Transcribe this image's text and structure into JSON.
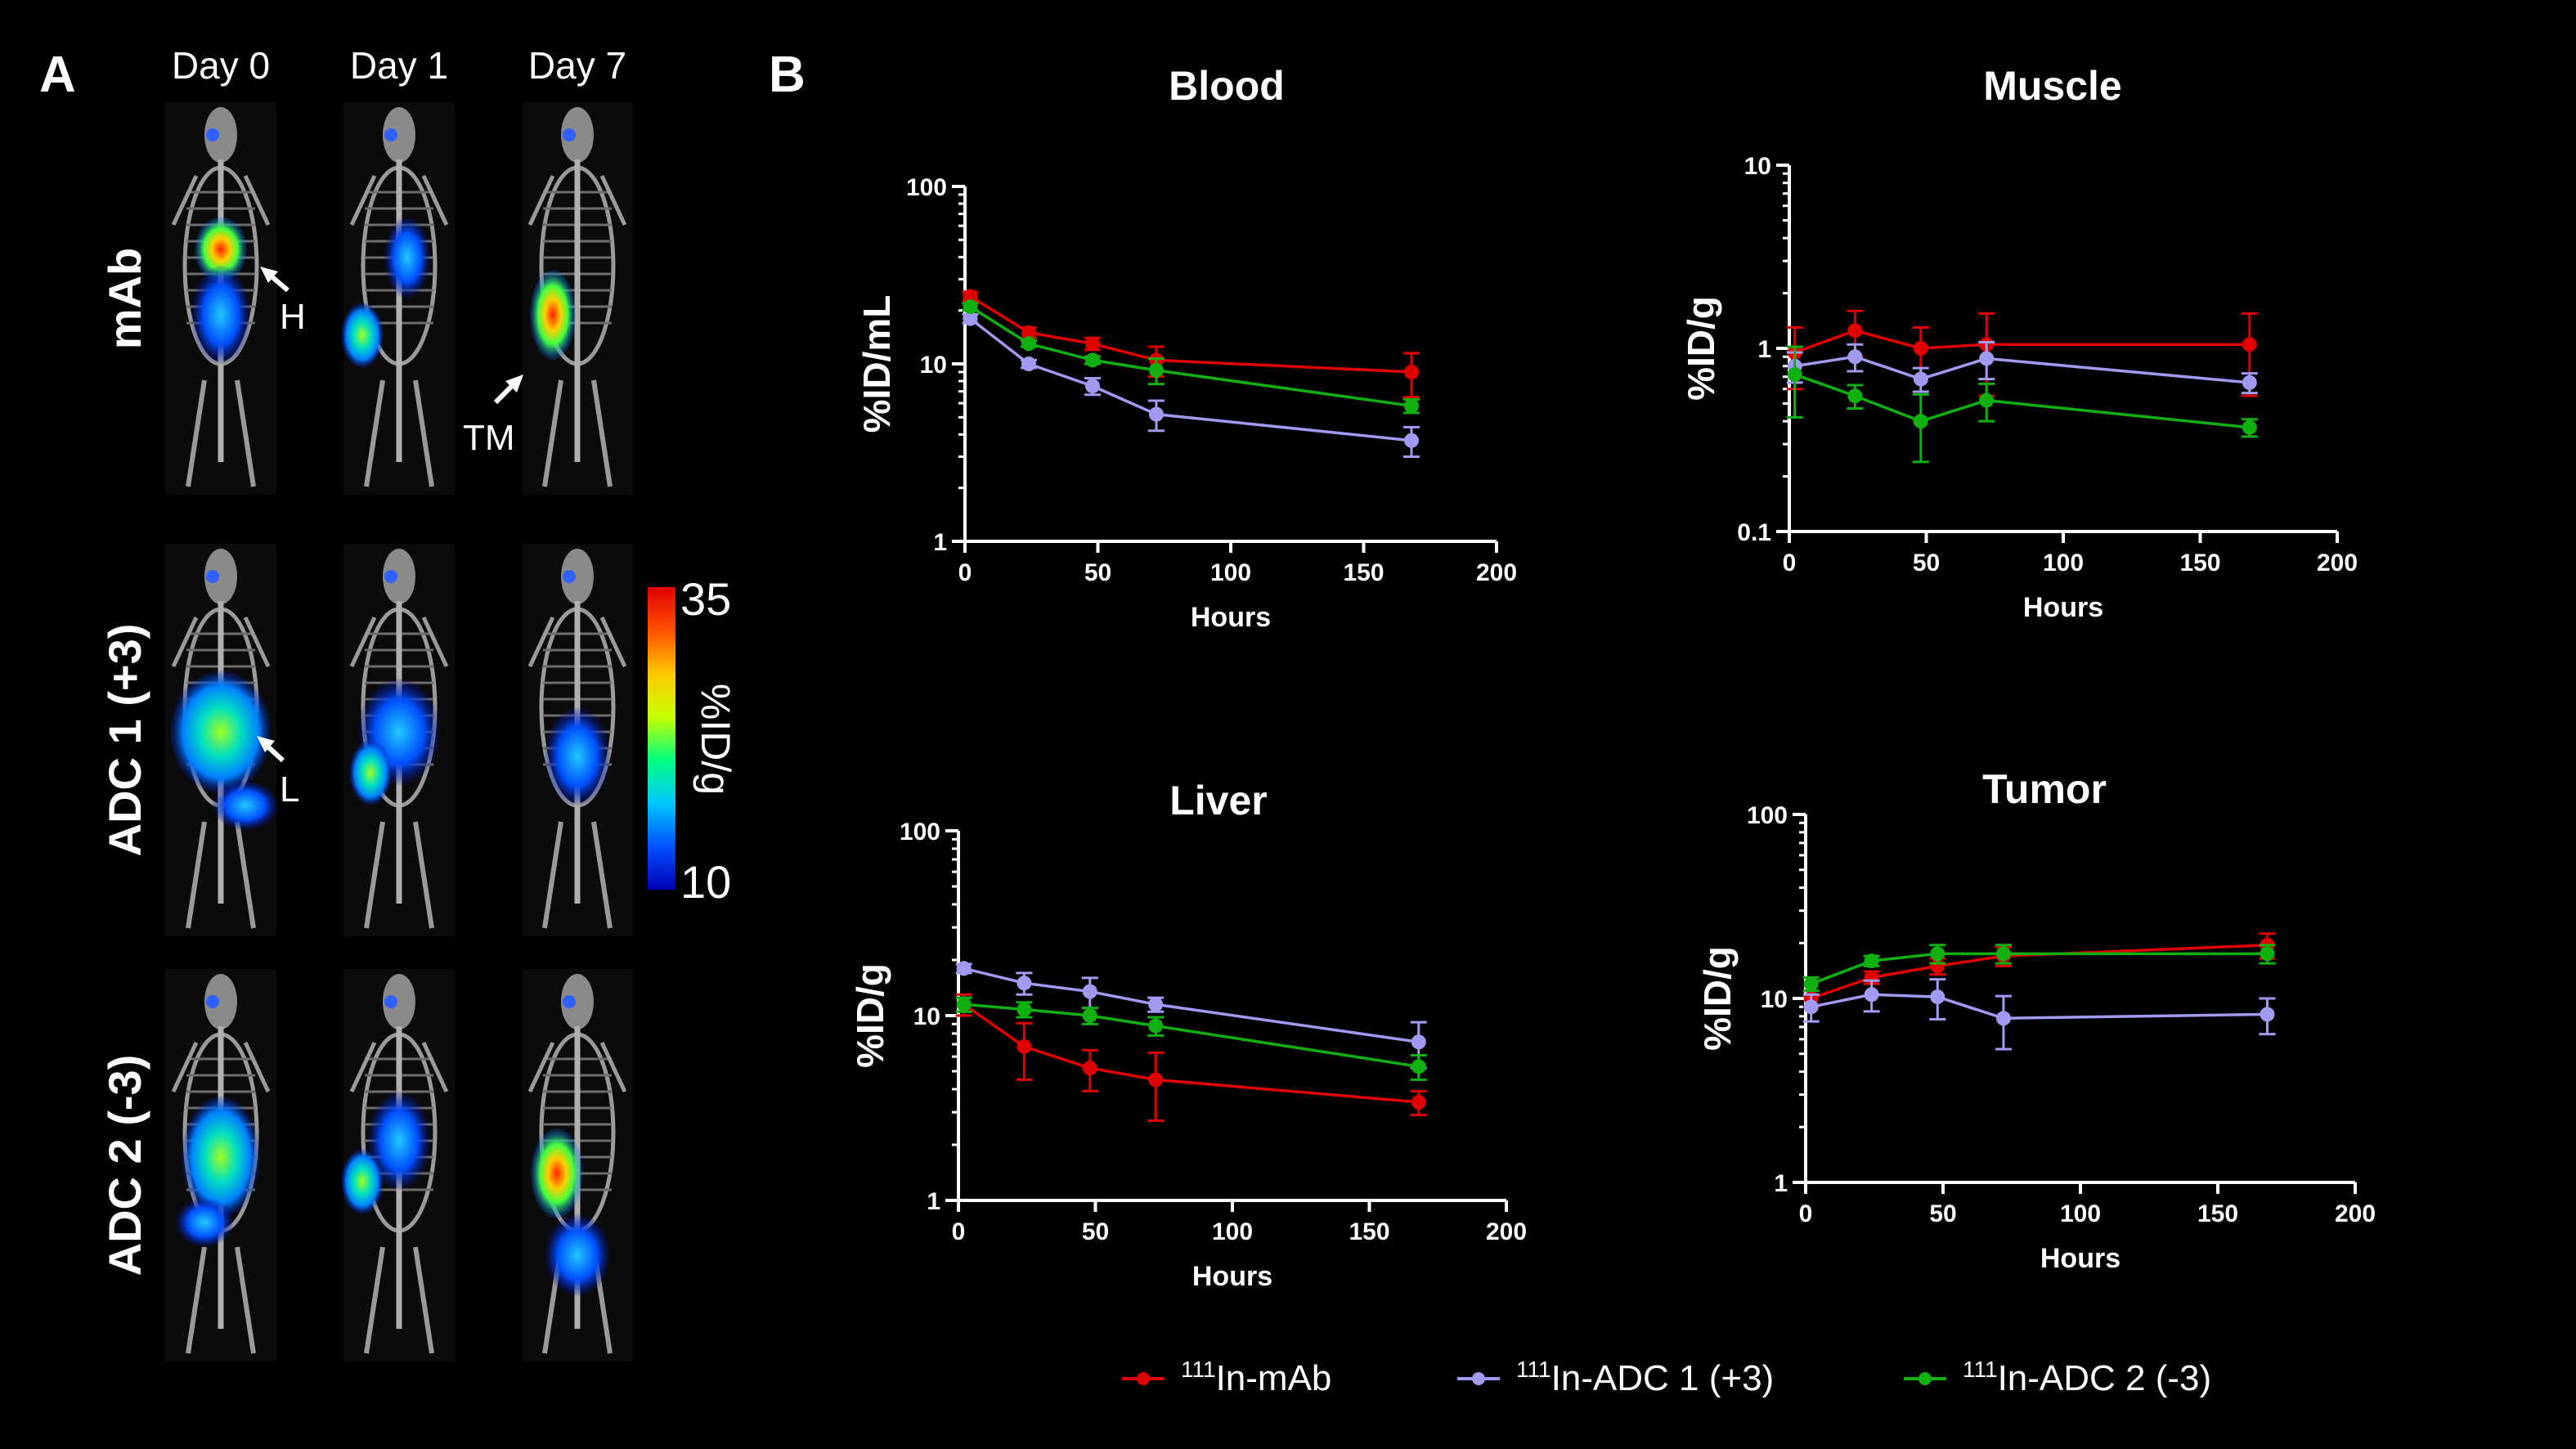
{
  "panels": {
    "a_label": "A",
    "b_label": "B"
  },
  "imaging": {
    "columns": [
      "Day 0",
      "Day 1",
      "Day 7"
    ],
    "rows": [
      "mAb",
      "ADC 1 (+3)",
      "ADC 2 (-3)"
    ],
    "annotations": {
      "heart": "H",
      "tumor": "TM",
      "liver": "L"
    },
    "colorbar": {
      "max_label": "35",
      "min_label": "10",
      "unit_label": "%ID/g",
      "colors": [
        "#0000b4",
        "#0050ff",
        "#00c8ff",
        "#00ff80",
        "#c8ff00",
        "#ffc800",
        "#ff5000",
        "#e00000"
      ]
    }
  },
  "legend": [
    {
      "sup": "111",
      "text": "In-mAb",
      "color": "#e00000"
    },
    {
      "sup": "111",
      "text": "In-ADC 1 (+3)",
      "color": "#a09af0"
    },
    {
      "sup": "111",
      "text": "In-ADC 2 (-3)",
      "color": "#10b010"
    }
  ],
  "chart_data": [
    {
      "type": "line",
      "title": "Blood",
      "xlabel": "Hours",
      "ylabel": "%ID/mL",
      "yscale": "log",
      "ylim": [
        1,
        100
      ],
      "xlim": [
        0,
        200
      ],
      "yticks": [
        "1",
        "10",
        "100"
      ],
      "xticks": [
        "0",
        "50",
        "100",
        "150",
        "200"
      ],
      "series": [
        {
          "name": "111In-mAb",
          "color": "#e00000",
          "x": [
            2,
            24,
            48,
            72,
            168
          ],
          "y": [
            24,
            15,
            13,
            10.5,
            9
          ],
          "err": [
            1.5,
            1,
            1,
            2,
            2.5
          ]
        },
        {
          "name": "111In-ADC 1 (+3)",
          "color": "#a09af0",
          "x": [
            2,
            24,
            48,
            72,
            168
          ],
          "y": [
            18,
            10,
            7.5,
            5.2,
            3.7
          ],
          "err": [
            1,
            0.5,
            0.8,
            1,
            0.7
          ]
        },
        {
          "name": "111In-ADC 2 (-3)",
          "color": "#10b010",
          "x": [
            2,
            24,
            48,
            72,
            168
          ],
          "y": [
            21,
            13,
            10.5,
            9.2,
            5.8
          ],
          "err": [
            1,
            0.5,
            0.5,
            1.5,
            0.5
          ]
        }
      ]
    },
    {
      "type": "line",
      "title": "Muscle",
      "xlabel": "Hours",
      "ylabel": "%ID/g",
      "yscale": "log",
      "ylim": [
        0.1,
        10
      ],
      "xlim": [
        0,
        200
      ],
      "yticks": [
        "0.1",
        "1",
        "10"
      ],
      "xticks": [
        "0",
        "50",
        "100",
        "150",
        "200"
      ],
      "series": [
        {
          "name": "111In-mAb",
          "color": "#e00000",
          "x": [
            2,
            24,
            48,
            72,
            168
          ],
          "y": [
            0.95,
            1.25,
            1.0,
            1.05,
            1.05
          ],
          "err": [
            0.35,
            0.35,
            0.3,
            0.5,
            0.5
          ]
        },
        {
          "name": "111In-ADC 1 (+3)",
          "color": "#a09af0",
          "x": [
            2,
            24,
            48,
            72,
            168
          ],
          "y": [
            0.8,
            0.9,
            0.68,
            0.88,
            0.65
          ],
          "err": [
            0.15,
            0.15,
            0.1,
            0.2,
            0.08
          ]
        },
        {
          "name": "111In-ADC 2 (-3)",
          "color": "#10b010",
          "x": [
            2,
            24,
            48,
            72,
            168
          ],
          "y": [
            0.72,
            0.55,
            0.4,
            0.52,
            0.37
          ],
          "err": [
            0.3,
            0.08,
            0.16,
            0.12,
            0.04
          ]
        }
      ]
    },
    {
      "type": "line",
      "title": "Liver",
      "xlabel": "Hours",
      "ylabel": "%ID/g",
      "yscale": "log",
      "ylim": [
        1,
        100
      ],
      "xlim": [
        0,
        200
      ],
      "yticks": [
        "1",
        "10",
        "100"
      ],
      "xticks": [
        "0",
        "50",
        "100",
        "150",
        "200"
      ],
      "series": [
        {
          "name": "111In-mAb",
          "color": "#e00000",
          "x": [
            2,
            24,
            48,
            72,
            168
          ],
          "y": [
            11.5,
            6.8,
            5.2,
            4.5,
            3.4
          ],
          "err": [
            1.5,
            2.3,
            1.3,
            1.8,
            0.5
          ]
        },
        {
          "name": "111In-ADC 1 (+3)",
          "color": "#a09af0",
          "x": [
            2,
            24,
            48,
            72,
            168
          ],
          "y": [
            18,
            15,
            13.5,
            11.5,
            7.2
          ],
          "err": [
            1,
            2,
            2.5,
            1,
            2
          ]
        },
        {
          "name": "111In-ADC 2 (-3)",
          "color": "#10b010",
          "x": [
            2,
            24,
            48,
            72,
            168
          ],
          "y": [
            11.5,
            10.8,
            10,
            8.8,
            5.3
          ],
          "err": [
            1,
            1,
            1,
            1,
            0.8
          ]
        }
      ]
    },
    {
      "type": "line",
      "title": "Tumor",
      "xlabel": "Hours",
      "ylabel": "%ID/g",
      "yscale": "log",
      "ylim": [
        1,
        100
      ],
      "xlim": [
        0,
        200
      ],
      "yticks": [
        "1",
        "10",
        "100"
      ],
      "xticks": [
        "0",
        "50",
        "100",
        "150",
        "200"
      ],
      "series": [
        {
          "name": "111In-mAb",
          "color": "#e00000",
          "x": [
            2,
            24,
            48,
            72,
            168
          ],
          "y": [
            10,
            13,
            15,
            17,
            19.5
          ],
          "err": [
            1,
            1,
            1.5,
            2,
            3
          ]
        },
        {
          "name": "111In-ADC 1 (+3)",
          "color": "#a09af0",
          "x": [
            2,
            24,
            48,
            72,
            168
          ],
          "y": [
            9,
            10.5,
            10.2,
            7.8,
            8.2
          ],
          "err": [
            1.5,
            2,
            2.5,
            2.5,
            1.8
          ]
        },
        {
          "name": "111In-ADC 2 (-3)",
          "color": "#10b010",
          "x": [
            2,
            24,
            48,
            72,
            168
          ],
          "y": [
            12,
            16,
            17.5,
            17.5,
            17.5
          ],
          "err": [
            1,
            1,
            2,
            2,
            2
          ]
        }
      ]
    }
  ]
}
